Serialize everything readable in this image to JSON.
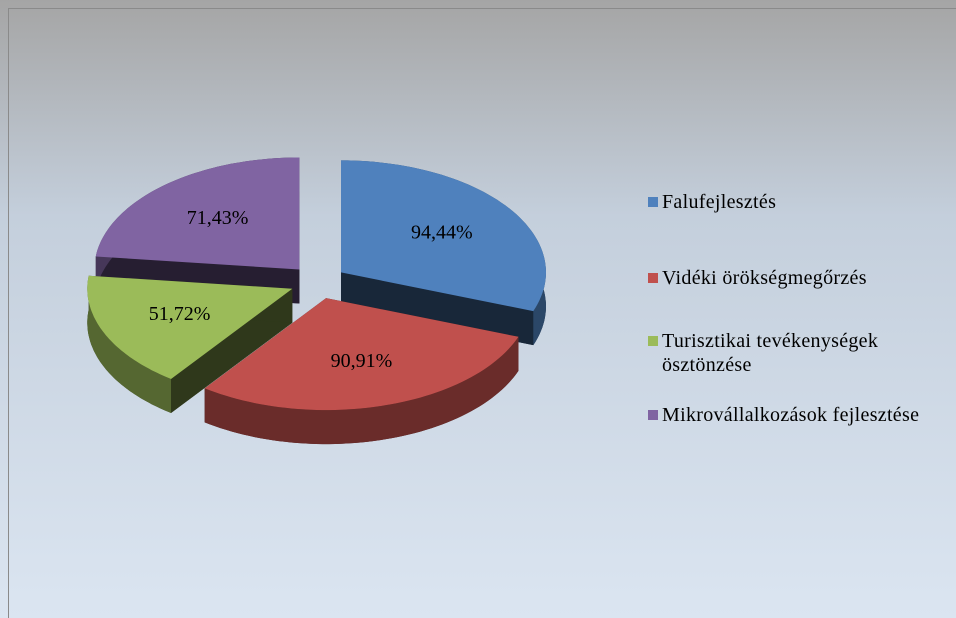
{
  "chart_data": {
    "type": "pie3d",
    "categories": [
      "Falufejlesztés",
      "Vidéki örökségmegőrzés",
      "Turisztikai tevékenységek ösztönzése",
      "Mikrovállalkozások fejlesztése"
    ],
    "values": [
      94.44,
      90.91,
      51.72,
      71.43
    ],
    "value_labels": [
      "94,44%",
      "90,91%",
      "51,72%",
      "71,43%"
    ],
    "colors": [
      "#4f81bd",
      "#c0504d",
      "#9bbb59",
      "#8064a2"
    ],
    "legend": "right"
  }
}
